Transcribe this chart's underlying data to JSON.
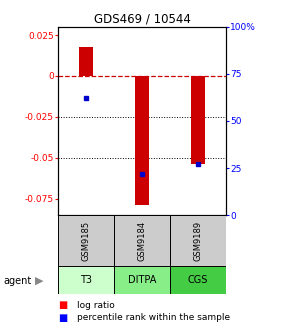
{
  "title": "GDS469 / 10544",
  "samples": [
    "GSM9185",
    "GSM9184",
    "GSM9189"
  ],
  "agents": [
    "T3",
    "DITPA",
    "CGS"
  ],
  "log_ratios": [
    0.018,
    -0.079,
    -0.054
  ],
  "percentile_ranks": [
    62,
    22,
    27
  ],
  "bar_color": "#cc0000",
  "dot_color": "#0000cc",
  "ylim_left": [
    -0.085,
    0.03
  ],
  "ylim_right": [
    0,
    100
  ],
  "yticks_left": [
    0.025,
    0.0,
    -0.025,
    -0.05,
    -0.075
  ],
  "yticks_right": [
    100,
    75,
    50,
    25,
    0
  ],
  "ytick_labels_left": [
    "0.025",
    "0",
    "-0.025",
    "-0.05",
    "-0.075"
  ],
  "ytick_labels_right": [
    "100%",
    "75",
    "50",
    "25",
    "0"
  ],
  "hline_y": 0.0,
  "hline_color": "#cc0000",
  "dotted_lines": [
    -0.025,
    -0.05
  ],
  "bar_width": 0.25,
  "x_positions": [
    1,
    2,
    3
  ],
  "background_color": "#ffffff",
  "sample_box_color": "#cccccc",
  "agent_box_colors": [
    "#ccffcc",
    "#88ee88",
    "#44cc44"
  ]
}
